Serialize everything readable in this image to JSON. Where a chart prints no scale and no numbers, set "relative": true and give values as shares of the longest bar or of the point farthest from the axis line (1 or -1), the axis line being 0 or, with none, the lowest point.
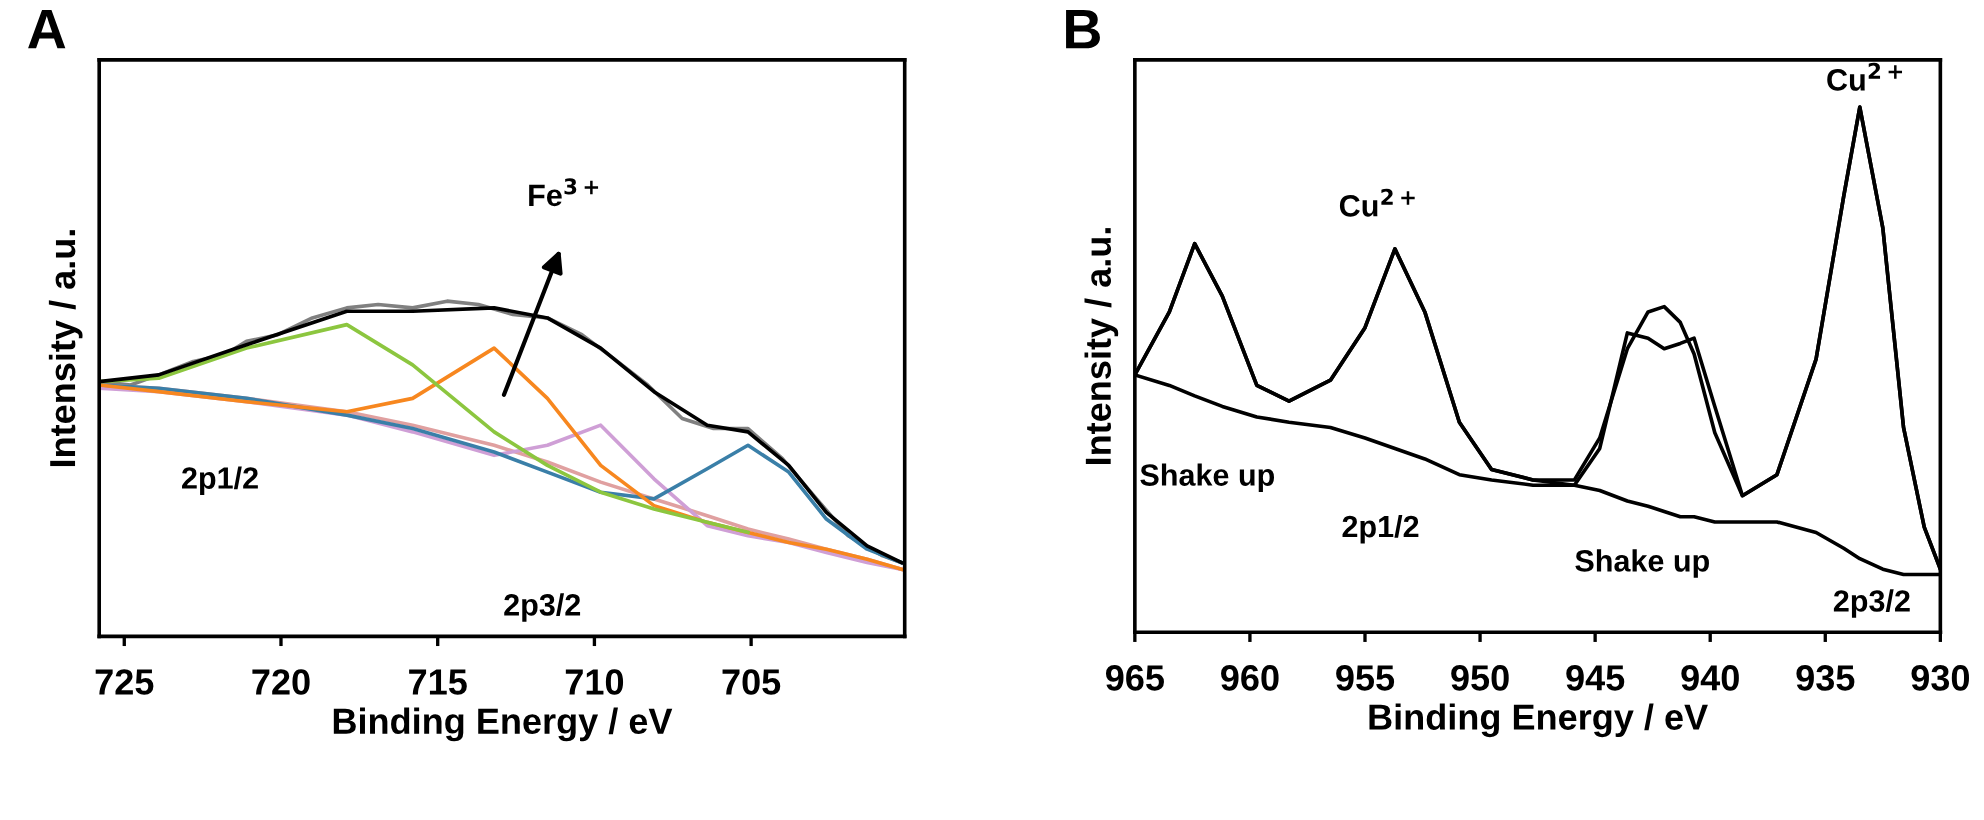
{
  "chart_data": [
    {
      "type": "line",
      "title": "A",
      "xlabel": "Binding Energy / eV",
      "ylabel": "Intensity / a.u.",
      "relative": true,
      "tick_labels": "x",
      "grid": false,
      "xlim": [
        725.8,
        700.1
      ],
      "xticks": [
        725,
        720,
        715,
        710,
        705
      ],
      "annotations": [
        "Fe$^{3+}$",
        "2p1/2",
        "2p3/2"
      ],
      "x": [
        725.8,
        723.9,
        721.1,
        717.9,
        715.8,
        713.2,
        711.5,
        709.8,
        708.1,
        706.4,
        705.1,
        703.8,
        702.6,
        701.3,
        700.2
      ],
      "series": [
        {
          "color": "#808080",
          "x": [
            725.8,
            724.8,
            723.9,
            722.8,
            721.8,
            721.1,
            720.1,
            719.0,
            717.9,
            716.9,
            715.8,
            714.7,
            713.7,
            712.6,
            711.5,
            710.4,
            709.4,
            708.3,
            707.2,
            706.2,
            705.1,
            704.0,
            703.0,
            701.9,
            700.8,
            700.2
          ],
          "values": [
            0.76,
            0.75,
            0.78,
            0.82,
            0.84,
            0.88,
            0.9,
            0.95,
            0.98,
            0.99,
            0.98,
            1.0,
            0.99,
            0.96,
            0.95,
            0.9,
            0.83,
            0.75,
            0.65,
            0.62,
            0.62,
            0.53,
            0.42,
            0.3,
            0.24,
            0.22
          ]
        },
        {
          "color": "#e0a0a0",
          "values": [
            0.75,
            0.74,
            0.71,
            0.67,
            0.63,
            0.57,
            0.52,
            0.46,
            0.41,
            0.36,
            0.32,
            0.29,
            0.26,
            0.23,
            0.2
          ]
        },
        {
          "color": "#cf9fd6",
          "values": [
            0.74,
            0.73,
            0.7,
            0.66,
            0.61,
            0.54,
            0.57,
            0.63,
            0.47,
            0.33,
            0.3,
            0.28,
            0.25,
            0.22,
            0.2
          ]
        },
        {
          "color": "#3a7fa8",
          "values": [
            0.75,
            0.74,
            0.71,
            0.66,
            0.62,
            0.55,
            0.49,
            0.43,
            0.41,
            0.5,
            0.57,
            0.49,
            0.35,
            0.26,
            0.22
          ]
        },
        {
          "color": "#f7871f",
          "values": [
            0.75,
            0.73,
            0.7,
            0.67,
            0.71,
            0.86,
            0.71,
            0.51,
            0.39,
            0.34,
            0.31,
            0.28,
            0.26,
            0.23,
            0.2
          ]
        },
        {
          "color": "#8cc63f",
          "values": [
            0.76,
            0.77,
            0.86,
            0.93,
            0.81,
            0.61,
            0.51,
            0.43,
            0.38,
            0.34,
            0.31,
            null,
            null,
            null,
            null
          ]
        },
        {
          "color": "#000000",
          "values": [
            0.76,
            0.78,
            0.87,
            0.97,
            0.97,
            0.98,
            0.95,
            0.86,
            0.73,
            0.63,
            0.61,
            0.51,
            0.37,
            0.27,
            0.22
          ]
        }
      ]
    },
    {
      "type": "line",
      "title": "B",
      "xlabel": "Binding Energy / eV",
      "ylabel": "Intensity / a.u.",
      "relative": true,
      "tick_labels": "x",
      "grid": false,
      "xlim": [
        965,
        930
      ],
      "xticks": [
        965,
        960,
        955,
        950,
        945,
        940,
        935,
        930
      ],
      "annotations": [
        "Cu$^{2+}$",
        "Cu$^{2+}$",
        "Shake up",
        "2p1/2",
        "Shake up",
        "2p3/2"
      ],
      "x": [
        965,
        963.5,
        962.4,
        961.2,
        959.7,
        958.3,
        956.5,
        955.0,
        953.7,
        952.4,
        950.9,
        949.5,
        947.7,
        945.9,
        944.8,
        943.6,
        942.7,
        942.0,
        941.3,
        940.7,
        939.8,
        938.6,
        937.1,
        935.4,
        934.2,
        933.5,
        932.5,
        931.6,
        930.7,
        930.0
      ],
      "series": [
        {
          "color": "#000000",
          "values": [
            0.49,
            0.61,
            0.74,
            0.64,
            0.47,
            0.44,
            0.48,
            0.58,
            0.73,
            0.61,
            0.4,
            0.31,
            0.29,
            0.28,
            0.35,
            0.57,
            0.56,
            0.54,
            0.55,
            0.56,
            0.43,
            0.26,
            0.3,
            0.52,
            0.83,
            1.0,
            0.77,
            0.39,
            0.2,
            0.12
          ]
        },
        {
          "color": "#000000",
          "values": [
            0.49,
            0.61,
            0.74,
            0.64,
            0.47,
            0.44,
            0.48,
            0.58,
            0.73,
            0.61,
            0.4,
            0.31,
            0.29,
            0.29,
            0.37,
            0.54,
            0.61,
            0.62,
            0.59,
            0.53,
            0.38,
            0.26,
            0.3,
            0.52,
            0.83,
            1.0,
            0.77,
            0.39,
            0.2,
            0.12
          ]
        },
        {
          "color": "#000000",
          "values": [
            0.49,
            0.47,
            0.45,
            0.43,
            0.41,
            0.4,
            0.39,
            0.37,
            0.35,
            0.33,
            0.3,
            0.29,
            0.28,
            0.28,
            0.27,
            0.25,
            0.24,
            0.23,
            0.22,
            0.22,
            0.21,
            0.21,
            0.21,
            0.19,
            0.16,
            0.14,
            0.12,
            0.11,
            0.11,
            0.11
          ]
        }
      ]
    }
  ]
}
